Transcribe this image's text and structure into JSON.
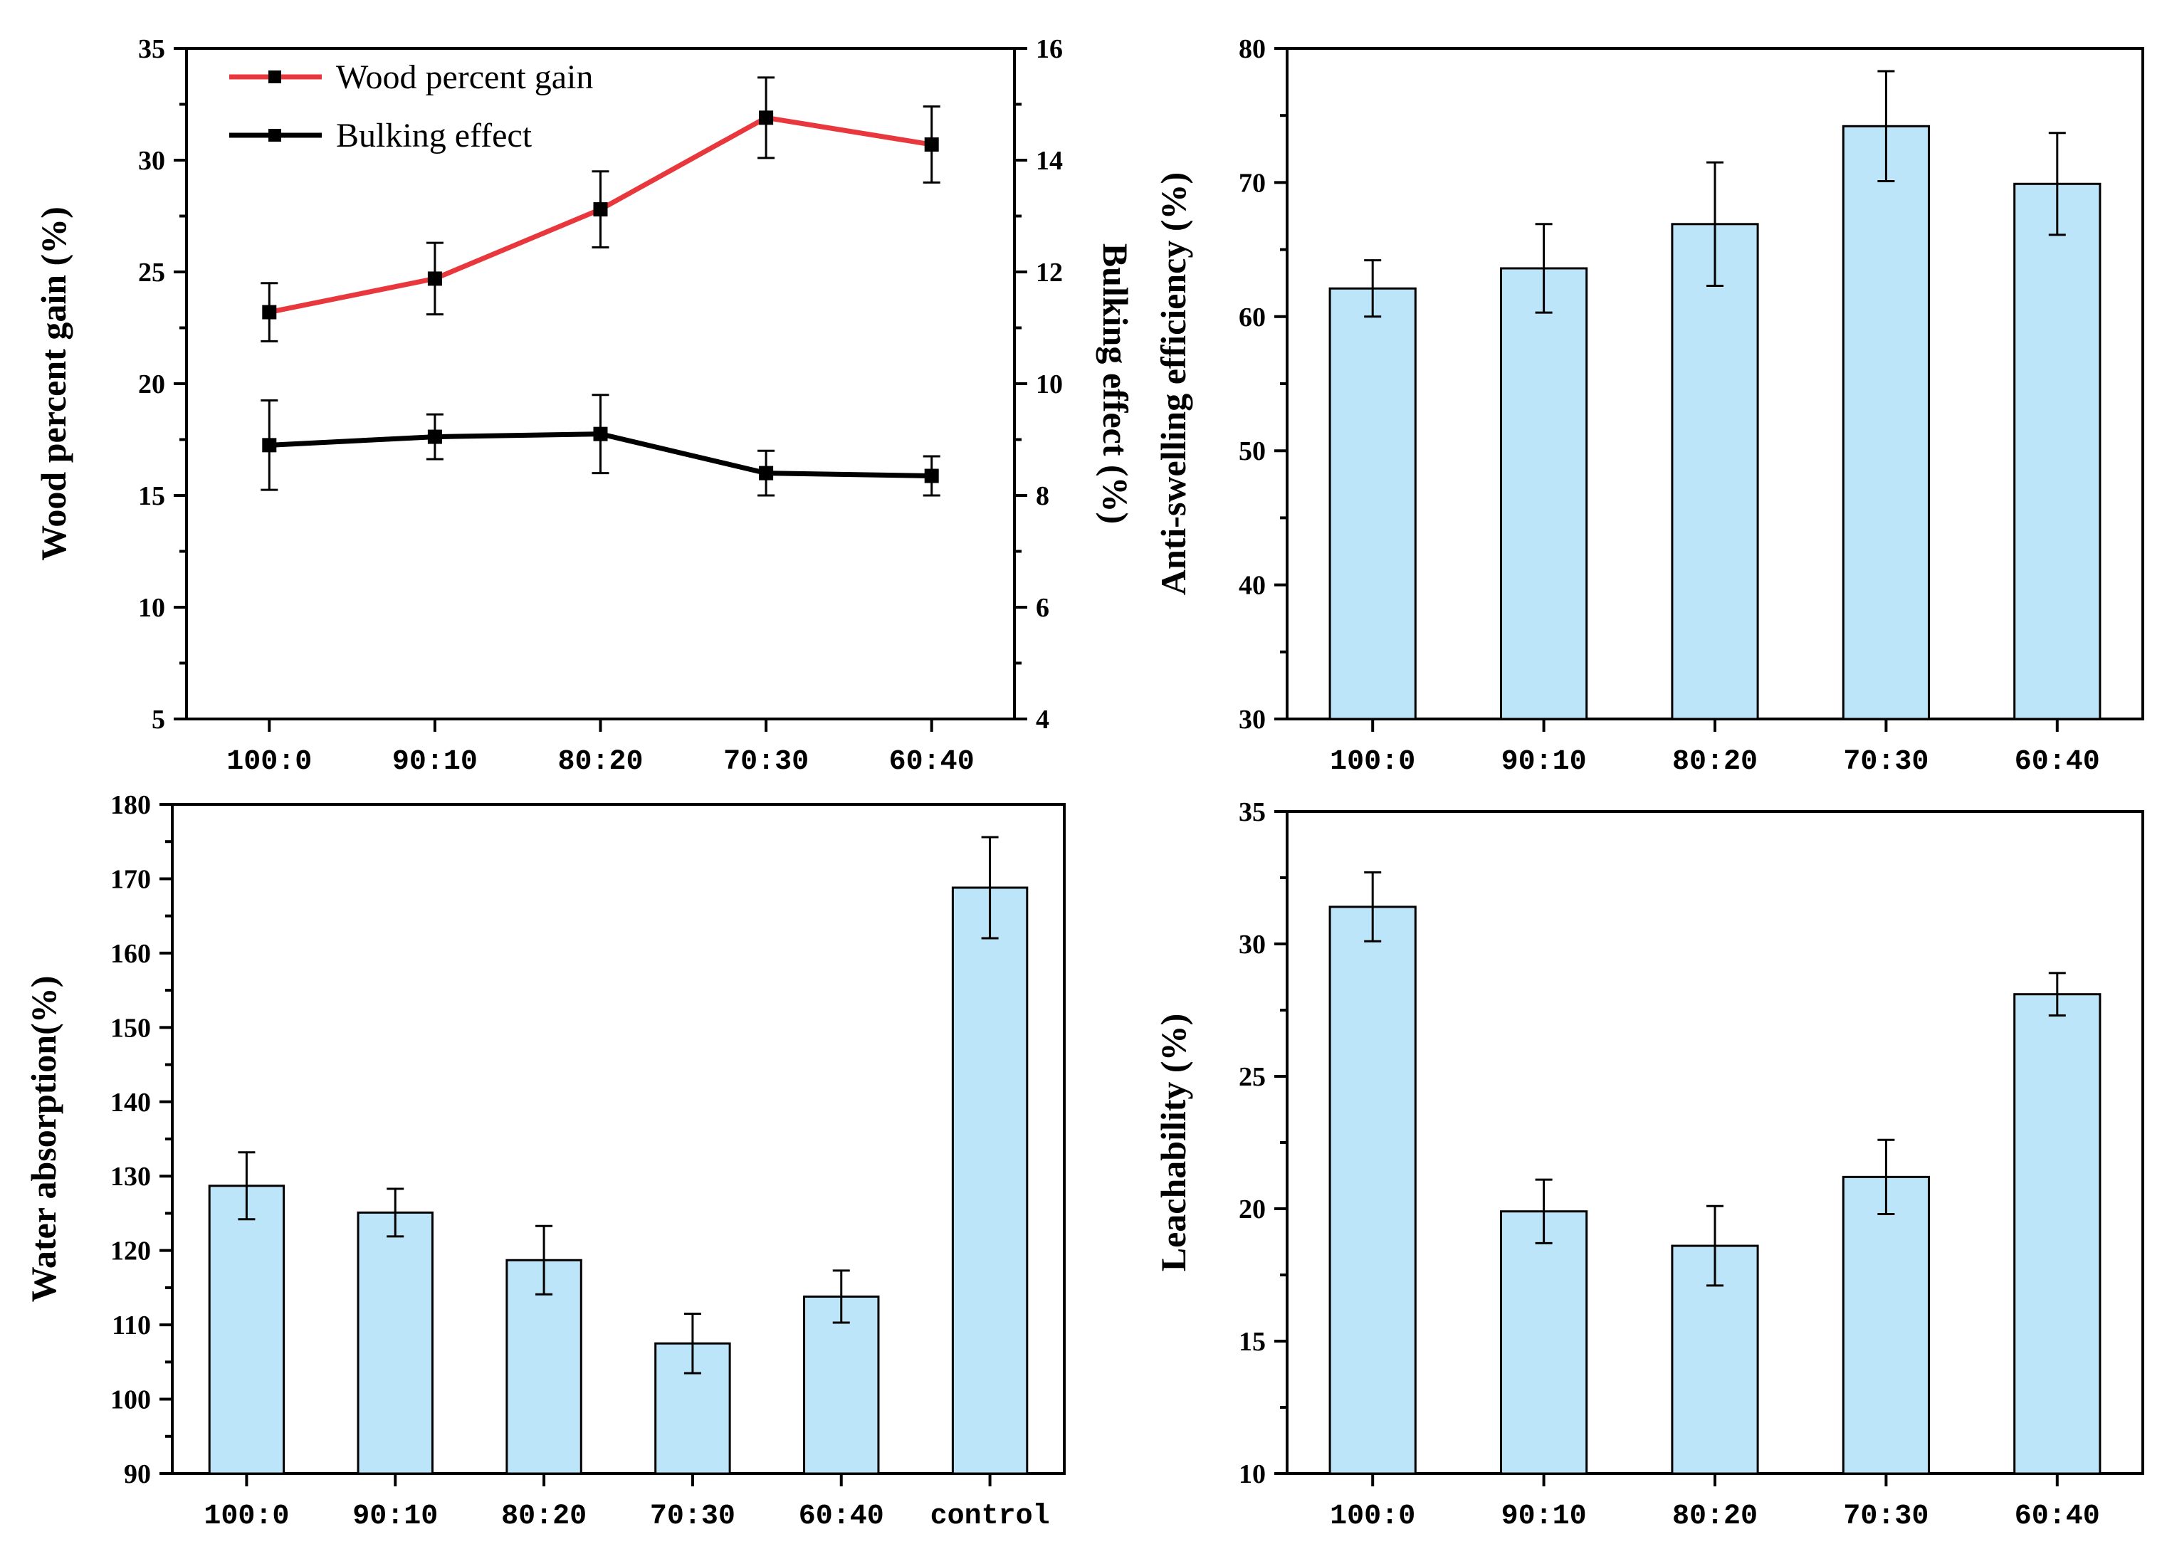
{
  "chart_data": [
    {
      "id": "a",
      "type": "line",
      "categories": [
        "100:0",
        "90:10",
        "80:20",
        "70:30",
        "60:40"
      ],
      "xlabel": "",
      "ylabel": "Wood percent gain (%)",
      "ylim": [
        5,
        35
      ],
      "yticks": [
        5,
        10,
        15,
        20,
        25,
        30,
        35
      ],
      "y2label": "Bulking effect (%)",
      "y2lim": [
        4,
        16
      ],
      "y2ticks": [
        4,
        6,
        8,
        10,
        12,
        14,
        16
      ],
      "legend": "top-left",
      "series": [
        {
          "name": "Wood percent gain",
          "axis": "left",
          "color": "#e8383d",
          "values": [
            23.2,
            24.7,
            27.8,
            31.9,
            30.7
          ],
          "errors": [
            1.3,
            1.6,
            1.7,
            1.8,
            1.7
          ]
        },
        {
          "name": "Bulking effect",
          "axis": "right",
          "color": "#000000",
          "values": [
            8.9,
            9.05,
            9.1,
            8.4,
            8.35
          ],
          "errors": [
            0.8,
            0.4,
            0.7,
            0.4,
            0.35
          ]
        }
      ]
    },
    {
      "id": "b",
      "type": "bar",
      "categories": [
        "100:0",
        "90:10",
        "80:20",
        "70:30",
        "60:40"
      ],
      "xlabel": "",
      "ylabel": "Anti-swelling efficiency (%)",
      "ylim": [
        30,
        80
      ],
      "yticks": [
        30,
        40,
        50,
        60,
        70,
        80
      ],
      "values": [
        62.1,
        63.6,
        66.9,
        74.2,
        69.9
      ],
      "errors": [
        2.1,
        3.3,
        4.6,
        4.1,
        3.8
      ]
    },
    {
      "id": "c",
      "type": "bar",
      "categories": [
        "100:0",
        "90:10",
        "80:20",
        "70:30",
        "60:40",
        "control"
      ],
      "xlabel": "",
      "ylabel": "Water absorption(%)",
      "ylim": [
        90,
        180
      ],
      "yticks": [
        90,
        100,
        110,
        120,
        130,
        140,
        150,
        160,
        170,
        180
      ],
      "values": [
        128.7,
        125.1,
        118.7,
        107.5,
        113.8,
        168.8
      ],
      "errors": [
        4.5,
        3.2,
        4.6,
        4.0,
        3.5,
        6.8
      ]
    },
    {
      "id": "d",
      "type": "bar",
      "categories": [
        "100:0",
        "90:10",
        "80:20",
        "70:30",
        "60:40"
      ],
      "xlabel": "",
      "ylabel": "Leachability (%)",
      "ylim": [
        10,
        35
      ],
      "yticks": [
        10,
        15,
        20,
        25,
        30,
        35
      ],
      "values": [
        31.4,
        19.9,
        18.6,
        21.2,
        28.1
      ],
      "errors": [
        1.3,
        1.2,
        1.5,
        1.4,
        0.8
      ]
    }
  ]
}
